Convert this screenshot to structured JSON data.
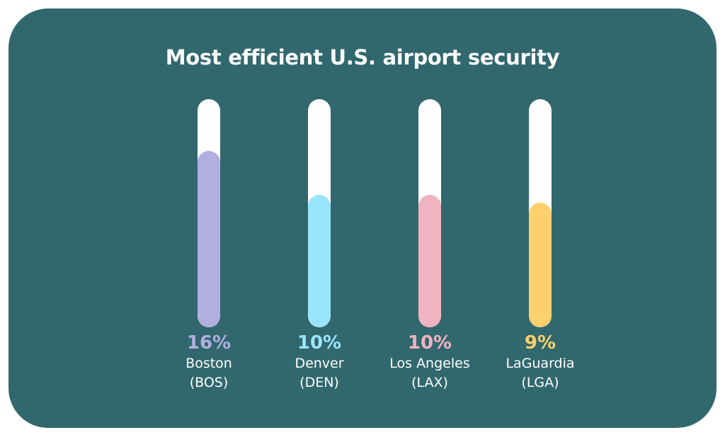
{
  "chart_data": {
    "type": "bar",
    "title": "Most efficient U.S. airport security",
    "categories": [
      "Boston",
      "Denver",
      "Los Angeles",
      "LaGuardia"
    ],
    "codes": [
      "(BOS)",
      "(DEN)",
      "(LAX)",
      "(LGA)"
    ],
    "values": [
      16,
      10,
      10,
      9
    ],
    "value_labels": [
      "16%",
      "10%",
      "10%",
      "9%"
    ],
    "colors": [
      "#b3aee0",
      "#99e6fc",
      "#f0b3c0",
      "#fdd06f"
    ],
    "ylim": [
      -8,
      23
    ],
    "xlabel": "",
    "ylabel": "",
    "grid": false
  },
  "colors": {
    "background": "#31686e",
    "track": "#ffffff"
  }
}
